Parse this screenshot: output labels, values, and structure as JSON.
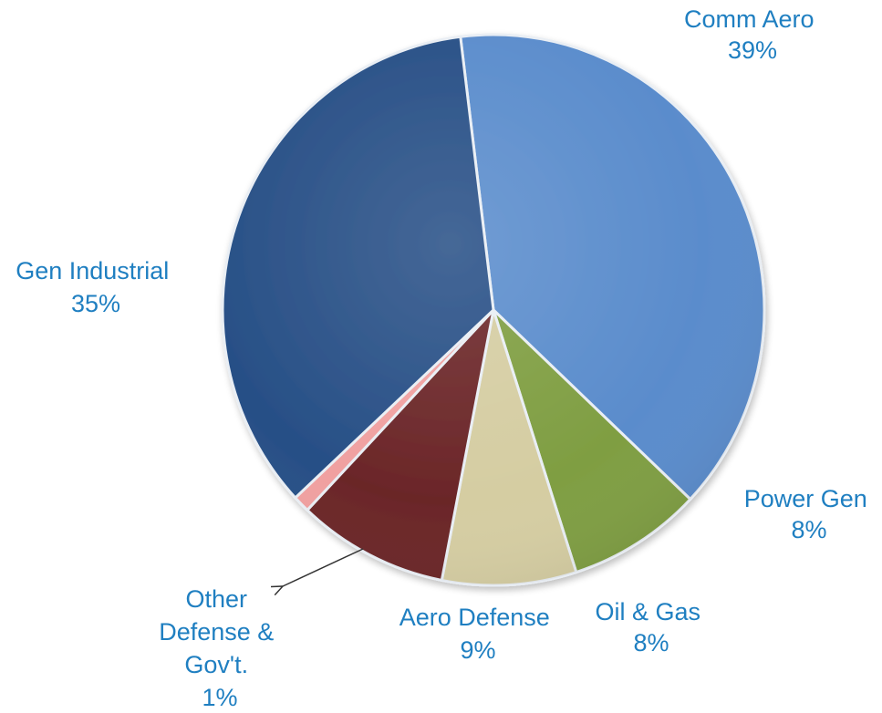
{
  "chart_data": {
    "type": "pie",
    "title": "",
    "slices": [
      {
        "name": "Comm Aero",
        "value": 39,
        "label": "39%",
        "color": "#5a8ccc"
      },
      {
        "name": "Power Gen",
        "value": 8,
        "label": "8%",
        "color": "#7f9e42"
      },
      {
        "name": "Oil & Gas",
        "value": 8,
        "label": "8%",
        "color": "#d5cda2"
      },
      {
        "name": "Aero Defense",
        "value": 9,
        "label": "9%",
        "color": "#6b2628"
      },
      {
        "name": "Other Defense & Gov't.",
        "value": 1,
        "label": "1%",
        "color": "#f0a0a0"
      },
      {
        "name": "Gen Industrial",
        "value": 35,
        "label": "35%",
        "color": "#274f86"
      }
    ],
    "labels": {
      "comm_aero": {
        "line1": "Comm Aero",
        "line2": "39%"
      },
      "power_gen": {
        "line1": "Power Gen",
        "line2": "8%"
      },
      "oil_gas": {
        "line1": "Oil & Gas",
        "line2": "8%"
      },
      "aero_defense": {
        "line1": "Aero Defense",
        "line2": "9%"
      },
      "other_defense": {
        "line1": "Other",
        "line2": "Defense &",
        "line3": "Gov't.",
        "line4": "1%"
      },
      "gen_industrial": {
        "line1": "Gen Industrial",
        "line2": "35%"
      }
    },
    "legend": "none",
    "label_color": "#1f7fc1"
  }
}
